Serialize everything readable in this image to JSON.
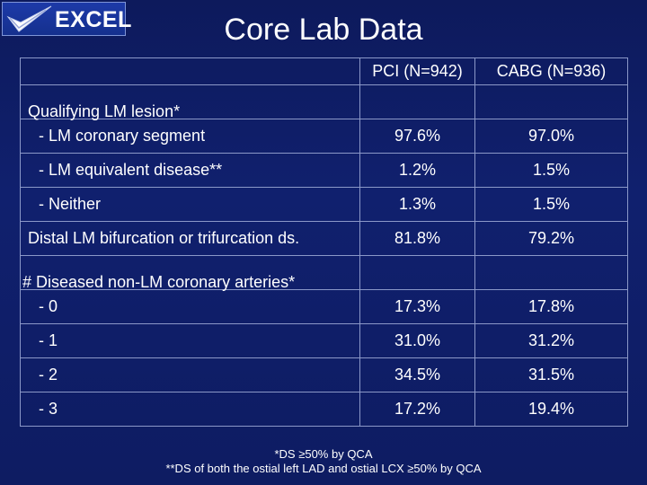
{
  "logo": {
    "text": "EXCEL",
    "icon": "checkmark-icon"
  },
  "title": "Core Lab Data",
  "columns": [
    "PCI (N=942)",
    "CABG (N=936)"
  ],
  "rows": [
    {
      "label": "Qualifying LM lesion*",
      "pci": "",
      "cabg": ""
    },
    {
      "label": "- LM coronary segment",
      "pci": "97.6%",
      "cabg": "97.0%"
    },
    {
      "label": "- LM equivalent disease**",
      "pci": "1.2%",
      "cabg": "1.5%"
    },
    {
      "label": "- Neither",
      "pci": "1.3%",
      "cabg": "1.5%"
    },
    {
      "label": "Distal LM bifurcation or trifurcation ds.",
      "pci": "81.8%",
      "cabg": "79.2%"
    },
    {
      "label": "# Diseased non-LM coronary arteries*",
      "pci": "",
      "cabg": ""
    },
    {
      "label": "- 0",
      "pci": "17.3%",
      "cabg": "17.8%"
    },
    {
      "label": "- 1",
      "pci": "31.0%",
      "cabg": "31.2%"
    },
    {
      "label": "- 2",
      "pci": "34.5%",
      "cabg": "31.5%"
    },
    {
      "label": "- 3",
      "pci": "17.2%",
      "cabg": "19.4%"
    }
  ],
  "footnotes": [
    "*DS ≥50% by QCA",
    "**DS of both the ostial left LAD and ostial LCX ≥50% by QCA"
  ],
  "colors": {
    "background": "#0d1a5c",
    "header": "#ffe000",
    "border": "#8b98c8"
  }
}
